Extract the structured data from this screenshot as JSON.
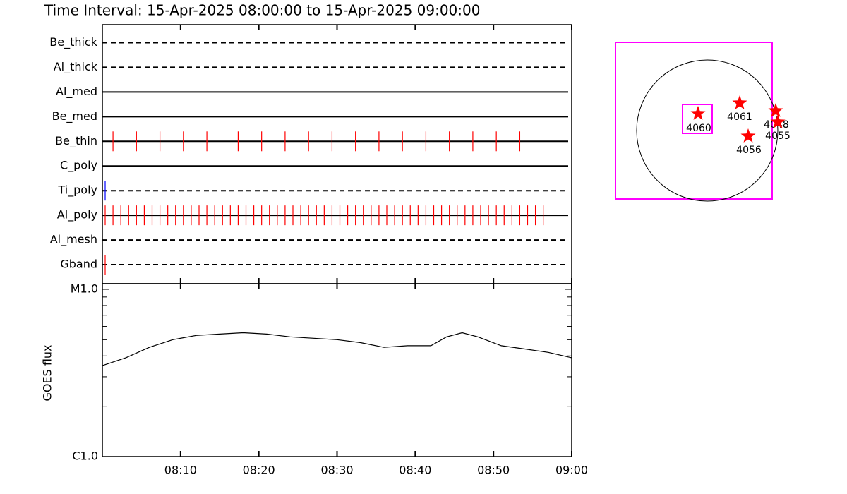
{
  "title": "Time Interval: 15-Apr-2025 08:00:00 to 15-Apr-2025 09:00:00",
  "chart_data": [
    {
      "type": "events",
      "xlim": [
        "08:00",
        "09:00"
      ],
      "series": [
        {
          "name": "Be_thick",
          "line": "dashed",
          "color": "#ff0000",
          "values": []
        },
        {
          "name": "Al_thick",
          "line": "dashed",
          "color": "#ff0000",
          "values": []
        },
        {
          "name": "Al_med",
          "line": "solid",
          "color": "#ff0000",
          "values": []
        },
        {
          "name": "Be_med",
          "line": "solid",
          "color": "#ff0000",
          "values": []
        },
        {
          "name": "Be_thin",
          "line": "solid",
          "color": "#ff0000",
          "values": [
            "08:01",
            "08:04",
            "08:07",
            "08:10",
            "08:13",
            "08:17",
            "08:20",
            "08:23",
            "08:26",
            "08:29",
            "08:32",
            "08:35",
            "08:38",
            "08:41",
            "08:44",
            "08:47",
            "08:50",
            "08:53"
          ]
        },
        {
          "name": "C_poly",
          "line": "solid",
          "color": "#ff0000",
          "values": []
        },
        {
          "name": "Ti_poly",
          "line": "dashed",
          "color": "#0000ff",
          "values": [
            "08:00"
          ]
        },
        {
          "name": "Al_poly",
          "line": "solid",
          "color": "#ff0000",
          "values": [
            "08:00",
            "08:01",
            "08:02",
            "08:03",
            "08:04",
            "08:05",
            "08:06",
            "08:07",
            "08:08",
            "08:09",
            "08:10",
            "08:11",
            "08:12",
            "08:13",
            "08:14",
            "08:15",
            "08:16",
            "08:17",
            "08:18",
            "08:19",
            "08:20",
            "08:21",
            "08:22",
            "08:23",
            "08:24",
            "08:25",
            "08:26",
            "08:27",
            "08:28",
            "08:29",
            "08:30",
            "08:31",
            "08:32",
            "08:33",
            "08:34",
            "08:35",
            "08:36",
            "08:37",
            "08:38",
            "08:39",
            "08:40",
            "08:41",
            "08:42",
            "08:43",
            "08:44",
            "08:45",
            "08:46",
            "08:47",
            "08:48",
            "08:49",
            "08:50",
            "08:51",
            "08:52",
            "08:53",
            "08:54",
            "08:55",
            "08:56"
          ]
        },
        {
          "name": "Al_mesh",
          "line": "dashed",
          "color": "#ff0000",
          "values": []
        },
        {
          "name": "Gband",
          "line": "dashed",
          "color": "#ff0000",
          "values": [
            "08:00"
          ]
        }
      ]
    },
    {
      "type": "line",
      "y_label": "GOES flux",
      "log_scale": true,
      "color": "#000000",
      "xlim": [
        "08:00",
        "09:00"
      ],
      "xticks": [
        "08:10",
        "08:20",
        "08:30",
        "08:40",
        "08:50",
        "09:00"
      ],
      "ylim": [
        1e-06,
        1e-05
      ],
      "yticks": [
        {
          "value": 1e-05,
          "label": "M1.0"
        },
        {
          "value": 1e-06,
          "label": "C1.0"
        }
      ],
      "yticks_minor": [
        2e-06,
        3e-06,
        4e-06,
        5e-06,
        6e-06,
        7e-06,
        8e-06,
        9e-06
      ],
      "x": [
        "08:00",
        "08:03",
        "08:06",
        "08:09",
        "08:12",
        "08:15",
        "08:18",
        "08:21",
        "08:24",
        "08:27",
        "08:30",
        "08:33",
        "08:36",
        "08:39",
        "08:42",
        "08:44",
        "08:46",
        "08:48",
        "08:51",
        "08:54",
        "08:57",
        "09:00"
      ],
      "values": [
        3.5e-06,
        3.9e-06,
        4.5e-06,
        5e-06,
        5.3e-06,
        5.4e-06,
        5.5e-06,
        5.4e-06,
        5.2e-06,
        5.1e-06,
        5e-06,
        4.8e-06,
        4.5e-06,
        4.6e-06,
        4.6e-06,
        5.2e-06,
        5.5e-06,
        5.2e-06,
        4.6e-06,
        4.4e-06,
        4.2e-06,
        3.9e-06
      ]
    }
  ],
  "map": {
    "regions": [
      "4060",
      "4061",
      "4056",
      "4048",
      "4055"
    ]
  }
}
